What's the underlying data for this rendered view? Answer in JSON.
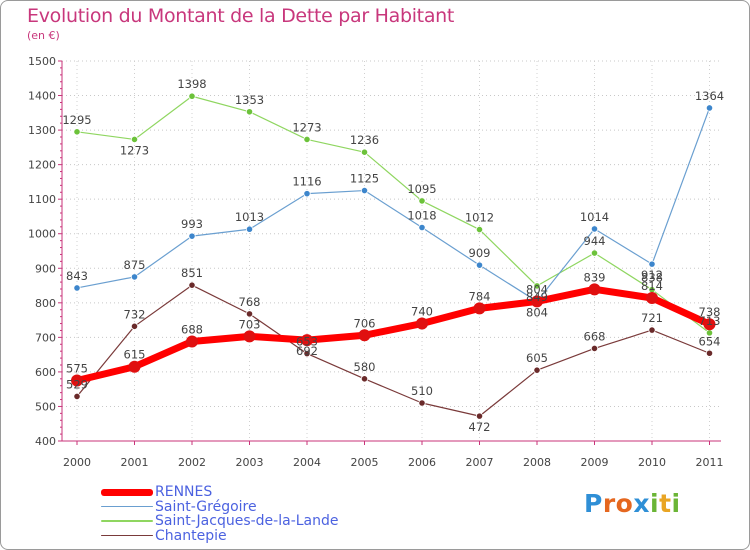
{
  "title": "Evolution du Montant de la Dette par Habitant",
  "subtitle": "(en €)",
  "logo": {
    "letters": [
      {
        "ch": "P",
        "color": "#2f8fd6"
      },
      {
        "ch": "r",
        "color": "#e5671f"
      },
      {
        "ch": "o",
        "color": "#e5671f"
      },
      {
        "ch": "x",
        "color": "#2f8fd6"
      },
      {
        "ch": "i",
        "color": "#6bb536"
      },
      {
        "ch": "t",
        "color": "#e9a524"
      },
      {
        "ch": "i",
        "color": "#6bb536"
      }
    ]
  },
  "chart_data": {
    "type": "line",
    "title": "Evolution du Montant de la Dette par Habitant",
    "subtitle": "(en €)",
    "xlabel": "",
    "ylabel": "",
    "x": [
      "2000",
      "2001",
      "2002",
      "2003",
      "2004",
      "2005",
      "2006",
      "2007",
      "2008",
      "2009",
      "2010",
      "2011"
    ],
    "ylim": [
      400,
      1500
    ],
    "yticks": [
      400,
      500,
      600,
      700,
      800,
      900,
      1000,
      1100,
      1200,
      1300,
      1400,
      1500
    ],
    "grid": "horizontal dotted",
    "legend_position": "bottom-left",
    "series": [
      {
        "name": "RENNES",
        "color": "#ff0000",
        "marker_color": "#e01010",
        "line_width": 7,
        "marker_radius": 6,
        "draw_order": 4,
        "values": [
          575,
          615,
          688,
          703,
          692,
          706,
          740,
          784,
          804,
          839,
          814,
          738
        ],
        "labels": [
          "575",
          "615",
          "688",
          "703",
          "692",
          "706",
          "740",
          "784",
          "804",
          "839",
          "814",
          "738"
        ]
      },
      {
        "name": "Saint-Grégoire",
        "color": "#6a9fd0",
        "marker_color": "#3d86cc",
        "line_width": 1.2,
        "marker_radius": 3.2,
        "draw_order": 2,
        "values": [
          843,
          875,
          993,
          1013,
          1116,
          1125,
          1018,
          909,
          804,
          1014,
          912,
          1364
        ],
        "labels": [
          "843",
          "875",
          "993",
          "1013",
          "1116",
          "1125",
          "1018",
          "909",
          "804",
          "1014",
          "912",
          "1364"
        ]
      },
      {
        "name": "Saint-Jacques-de-la-Lande",
        "color": "#8fd660",
        "marker_color": "#6cc23a",
        "line_width": 1.2,
        "marker_radius": 3.2,
        "draw_order": 1,
        "values": [
          1295,
          1273,
          1398,
          1353,
          1273,
          1236,
          1095,
          1012,
          849,
          944,
          838,
          713
        ],
        "labels": [
          "1295",
          "1273",
          "1398",
          "1353",
          "1273",
          "1236",
          "1095",
          "1012",
          "849",
          "944",
          "838",
          "713"
        ]
      },
      {
        "name": "Chantepie",
        "color": "#7a3a3a",
        "marker_color": "#6a2a2a",
        "line_width": 1.2,
        "marker_radius": 3.2,
        "draw_order": 3,
        "values": [
          529,
          732,
          851,
          768,
          653,
          580,
          510,
          472,
          605,
          668,
          721,
          654
        ],
        "labels": [
          "529",
          "732",
          "851",
          "768",
          "653",
          "580",
          "510",
          "472",
          "605",
          "668",
          "721",
          "654"
        ]
      }
    ]
  }
}
